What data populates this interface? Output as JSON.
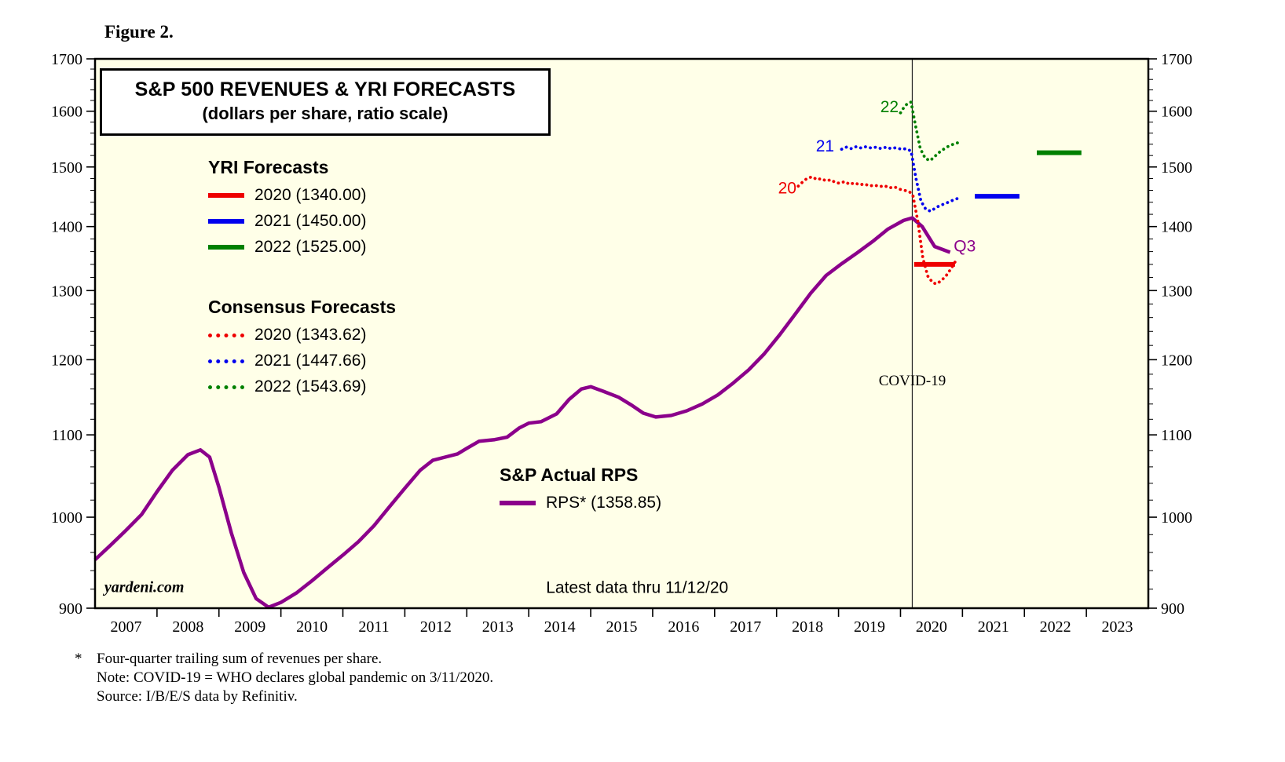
{
  "figure_label": "Figure 2.",
  "title": {
    "line1": "S&P 500 REVENUES & YRI FORECASTS",
    "line2": "(dollars per share, ratio scale)"
  },
  "legends": {
    "yri": {
      "header": "YRI Forecasts",
      "items": [
        {
          "label": "2020 (1340.00)",
          "color": "#ee0000",
          "style": "solid"
        },
        {
          "label": "2021 (1450.00)",
          "color": "#0000ee",
          "style": "solid"
        },
        {
          "label": "2022 (1525.00)",
          "color": "#008000",
          "style": "solid"
        }
      ]
    },
    "consensus": {
      "header": "Consensus Forecasts",
      "items": [
        {
          "label": "2020 (1343.62)",
          "color": "#ee0000",
          "style": "dotted"
        },
        {
          "label": "2021 (1447.66)",
          "color": "#0000ee",
          "style": "dotted"
        },
        {
          "label": "2022 (1543.69)",
          "color": "#008000",
          "style": "dotted"
        }
      ]
    },
    "actual": {
      "header": "S&P Actual RPS",
      "items": [
        {
          "label": "RPS* (1358.85)",
          "color": "#8b008b",
          "style": "solid"
        }
      ]
    }
  },
  "footnotes": {
    "marker": "*",
    "line1": "Four-quarter trailing sum of revenues per share.",
    "line2": "Note: COVID-19 = WHO declares global pandemic on 3/11/2020.",
    "line3": "Source: I/B/E/S data by Refinitiv."
  },
  "chart_data": {
    "type": "line",
    "title": "S&P 500 REVENUES & YRI FORECASTS (dollars per share, ratio scale)",
    "xlabel": "",
    "ylabel": "dollars per share",
    "y_scale": "log",
    "ylim": [
      900,
      1700
    ],
    "xlim": [
      2007,
      2024
    ],
    "plot_bg": "#ffffe8",
    "grid": false,
    "y_ticks": [
      900,
      1000,
      1100,
      1200,
      1300,
      1400,
      1500,
      1600,
      1700
    ],
    "x_year_labels": [
      2007,
      2008,
      2009,
      2010,
      2011,
      2012,
      2013,
      2014,
      2015,
      2016,
      2017,
      2018,
      2019,
      2020,
      2021,
      2022,
      2023
    ],
    "covid_line_x": 2020.19,
    "series": [
      {
        "name": "sp-actual-rps",
        "label": "RPS* (1358.85)",
        "color": "#8b008b",
        "style": "solid",
        "width": 4.5,
        "points": [
          [
            2007.0,
            952
          ],
          [
            2007.25,
            968
          ],
          [
            2007.5,
            985
          ],
          [
            2007.75,
            1003
          ],
          [
            2008.0,
            1030
          ],
          [
            2008.25,
            1056
          ],
          [
            2008.5,
            1075
          ],
          [
            2008.7,
            1081
          ],
          [
            2008.85,
            1072
          ],
          [
            2009.0,
            1035
          ],
          [
            2009.2,
            982
          ],
          [
            2009.4,
            938
          ],
          [
            2009.6,
            910
          ],
          [
            2009.8,
            901
          ],
          [
            2010.0,
            906
          ],
          [
            2010.25,
            916
          ],
          [
            2010.5,
            929
          ],
          [
            2010.75,
            943
          ],
          [
            2011.0,
            957
          ],
          [
            2011.25,
            972
          ],
          [
            2011.5,
            990
          ],
          [
            2011.75,
            1012
          ],
          [
            2012.0,
            1034
          ],
          [
            2012.25,
            1056
          ],
          [
            2012.45,
            1068
          ],
          [
            2012.65,
            1072
          ],
          [
            2012.85,
            1076
          ],
          [
            2013.0,
            1083
          ],
          [
            2013.2,
            1092
          ],
          [
            2013.45,
            1094
          ],
          [
            2013.65,
            1097
          ],
          [
            2013.85,
            1109
          ],
          [
            2014.0,
            1115
          ],
          [
            2014.2,
            1117
          ],
          [
            2014.45,
            1127
          ],
          [
            2014.65,
            1146
          ],
          [
            2014.85,
            1160
          ],
          [
            2015.0,
            1163
          ],
          [
            2015.2,
            1157
          ],
          [
            2015.45,
            1149
          ],
          [
            2015.65,
            1139
          ],
          [
            2015.85,
            1128
          ],
          [
            2016.05,
            1123
          ],
          [
            2016.3,
            1125
          ],
          [
            2016.55,
            1131
          ],
          [
            2016.8,
            1140
          ],
          [
            2017.05,
            1152
          ],
          [
            2017.3,
            1168
          ],
          [
            2017.55,
            1186
          ],
          [
            2017.8,
            1208
          ],
          [
            2018.05,
            1235
          ],
          [
            2018.3,
            1265
          ],
          [
            2018.55,
            1296
          ],
          [
            2018.8,
            1323
          ],
          [
            2019.05,
            1341
          ],
          [
            2019.3,
            1358
          ],
          [
            2019.55,
            1376
          ],
          [
            2019.8,
            1396
          ],
          [
            2020.05,
            1410
          ],
          [
            2020.19,
            1414
          ],
          [
            2020.35,
            1400
          ],
          [
            2020.55,
            1368
          ],
          [
            2020.8,
            1358.85
          ]
        ]
      },
      {
        "name": "consensus-2020",
        "label": "2020 (1343.62)",
        "color": "#ee0000",
        "style": "dotted",
        "width": 3.8,
        "points": [
          [
            2018.35,
            1467
          ],
          [
            2018.42,
            1474
          ],
          [
            2018.5,
            1481
          ],
          [
            2018.58,
            1483
          ],
          [
            2018.65,
            1478
          ],
          [
            2018.72,
            1480
          ],
          [
            2018.8,
            1476
          ],
          [
            2018.88,
            1478
          ],
          [
            2018.95,
            1473
          ],
          [
            2019.02,
            1472
          ],
          [
            2019.1,
            1475
          ],
          [
            2019.18,
            1470
          ],
          [
            2019.26,
            1473
          ],
          [
            2019.34,
            1469
          ],
          [
            2019.42,
            1471
          ],
          [
            2019.5,
            1467
          ],
          [
            2019.58,
            1469
          ],
          [
            2019.66,
            1466
          ],
          [
            2019.74,
            1468
          ],
          [
            2019.82,
            1464
          ],
          [
            2019.9,
            1466
          ],
          [
            2019.98,
            1462
          ],
          [
            2020.06,
            1460
          ],
          [
            2020.14,
            1458
          ],
          [
            2020.2,
            1452
          ],
          [
            2020.28,
            1408
          ],
          [
            2020.36,
            1350
          ],
          [
            2020.44,
            1322
          ],
          [
            2020.52,
            1312
          ],
          [
            2020.58,
            1310
          ],
          [
            2020.66,
            1315
          ],
          [
            2020.74,
            1323
          ],
          [
            2020.82,
            1334
          ],
          [
            2020.88,
            1343.62
          ]
        ]
      },
      {
        "name": "consensus-2021",
        "label": "2021 (1447.66)",
        "color": "#0000ee",
        "style": "dotted",
        "width": 3.8,
        "points": [
          [
            2019.05,
            1531
          ],
          [
            2019.13,
            1535
          ],
          [
            2019.21,
            1532
          ],
          [
            2019.29,
            1536
          ],
          [
            2019.37,
            1533
          ],
          [
            2019.45,
            1536
          ],
          [
            2019.53,
            1533
          ],
          [
            2019.61,
            1535
          ],
          [
            2019.69,
            1532
          ],
          [
            2019.77,
            1535
          ],
          [
            2019.85,
            1532
          ],
          [
            2019.93,
            1534
          ],
          [
            2020.01,
            1531
          ],
          [
            2020.09,
            1532
          ],
          [
            2020.17,
            1528
          ],
          [
            2020.25,
            1480
          ],
          [
            2020.33,
            1442
          ],
          [
            2020.41,
            1428
          ],
          [
            2020.49,
            1425
          ],
          [
            2020.57,
            1431
          ],
          [
            2020.65,
            1435
          ],
          [
            2020.73,
            1438
          ],
          [
            2020.81,
            1442
          ],
          [
            2020.89,
            1445
          ],
          [
            2020.95,
            1447.66
          ]
        ]
      },
      {
        "name": "consensus-2022",
        "label": "2022 (1543.69)",
        "color": "#008000",
        "style": "dotted",
        "width": 3.8,
        "points": [
          [
            2020.0,
            1597
          ],
          [
            2020.06,
            1608
          ],
          [
            2020.12,
            1615
          ],
          [
            2020.17,
            1617
          ],
          [
            2020.24,
            1575
          ],
          [
            2020.32,
            1532
          ],
          [
            2020.4,
            1515
          ],
          [
            2020.48,
            1511
          ],
          [
            2020.56,
            1519
          ],
          [
            2020.64,
            1527
          ],
          [
            2020.72,
            1533
          ],
          [
            2020.8,
            1538
          ],
          [
            2020.88,
            1541
          ],
          [
            2020.95,
            1543.69
          ]
        ]
      },
      {
        "name": "yri-forecast-2020",
        "label": "2020 (1340.00)",
        "color": "#ee0000",
        "style": "solid",
        "width": 6,
        "points": [
          [
            2020.22,
            1340
          ],
          [
            2020.88,
            1340
          ]
        ]
      },
      {
        "name": "yri-forecast-2021",
        "label": "2021 (1450.00)",
        "color": "#0000ee",
        "style": "solid",
        "width": 6,
        "points": [
          [
            2021.2,
            1450
          ],
          [
            2021.92,
            1450
          ]
        ]
      },
      {
        "name": "yri-forecast-2022",
        "label": "2022 (1525.00)",
        "color": "#008000",
        "style": "solid",
        "width": 6,
        "points": [
          [
            2022.2,
            1525
          ],
          [
            2022.92,
            1525
          ]
        ]
      }
    ],
    "annotations": [
      {
        "name": "label-20",
        "text": "20",
        "x": 2018.32,
        "y": 1455,
        "color": "#ee0000",
        "anchor": "end",
        "font": "sans",
        "size": 21
      },
      {
        "name": "label-21",
        "text": "21",
        "x": 2018.93,
        "y": 1527,
        "color": "#0000ee",
        "anchor": "end",
        "font": "sans",
        "size": 21
      },
      {
        "name": "label-22",
        "text": "22",
        "x": 2019.97,
        "y": 1598,
        "color": "#008000",
        "anchor": "end",
        "font": "sans",
        "size": 21
      },
      {
        "name": "label-q3",
        "text": "Q3",
        "x": 2020.86,
        "y": 1360,
        "color": "#8b008b",
        "anchor": "start",
        "font": "sans",
        "size": 21
      },
      {
        "name": "covid-label",
        "text": "COVID-19",
        "x": 2020.19,
        "y": 1165,
        "color": "#000000",
        "anchor": "middle",
        "font": "serif",
        "size": 19
      },
      {
        "name": "watermark",
        "text": "yardeni.com",
        "x": 2007.15,
        "y": 917,
        "color": "#000000",
        "anchor": "start",
        "font": "serif",
        "size": 20,
        "bold": true,
        "italic": true
      },
      {
        "name": "latest-data-note",
        "text": "Latest data thru 11/12/20",
        "x": 2015.75,
        "y": 916,
        "color": "#000000",
        "anchor": "middle",
        "font": "sans",
        "size": 21
      }
    ]
  }
}
